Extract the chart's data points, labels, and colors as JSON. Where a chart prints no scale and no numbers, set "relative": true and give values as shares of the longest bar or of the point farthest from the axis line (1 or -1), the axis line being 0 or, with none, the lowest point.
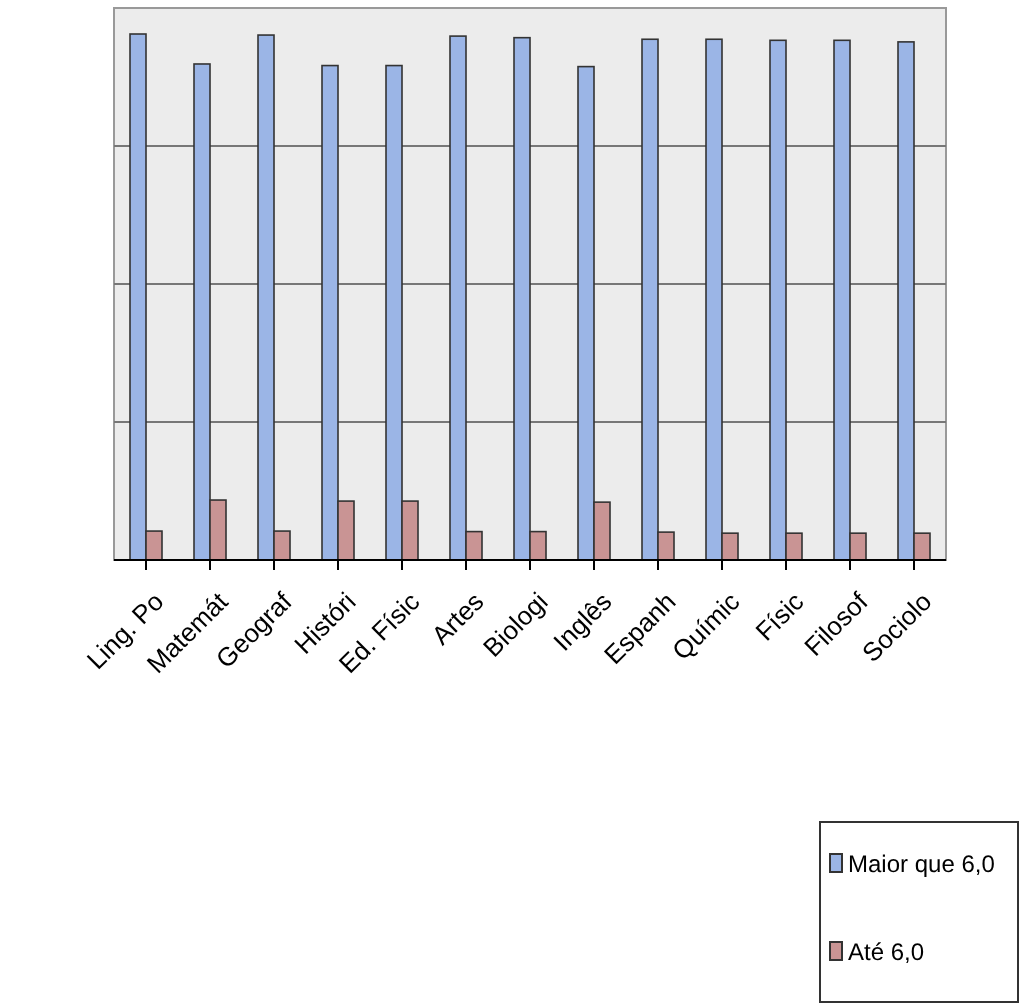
{
  "chart_data": {
    "type": "bar",
    "relative": true,
    "grid": true,
    "legend": "bottom right",
    "categories": [
      "Ling. Po",
      "Matemát",
      "Geograf",
      "Históri",
      "Ed. Físic",
      "Artes",
      "Biologi",
      "Inglês",
      "Espanh",
      "Químic",
      "Físic",
      "Filosof",
      "Sociolo"
    ],
    "series": [
      {
        "name": "Maior que 6,0",
        "color": "#9bb5e6",
        "values": [
          1,
          0.943,
          0.998,
          0.94,
          0.94,
          0.996,
          0.993,
          0.938,
          0.99,
          0.99,
          0.988,
          0.988,
          0.985
        ]
      },
      {
        "name": "Até 6,0",
        "color": "#c99494",
        "values": [
          0.055,
          0.114,
          0.055,
          0.112,
          0.112,
          0.054,
          0.054,
          0.11,
          0.053,
          0.051,
          0.051,
          0.051,
          0.051
        ]
      }
    ]
  }
}
